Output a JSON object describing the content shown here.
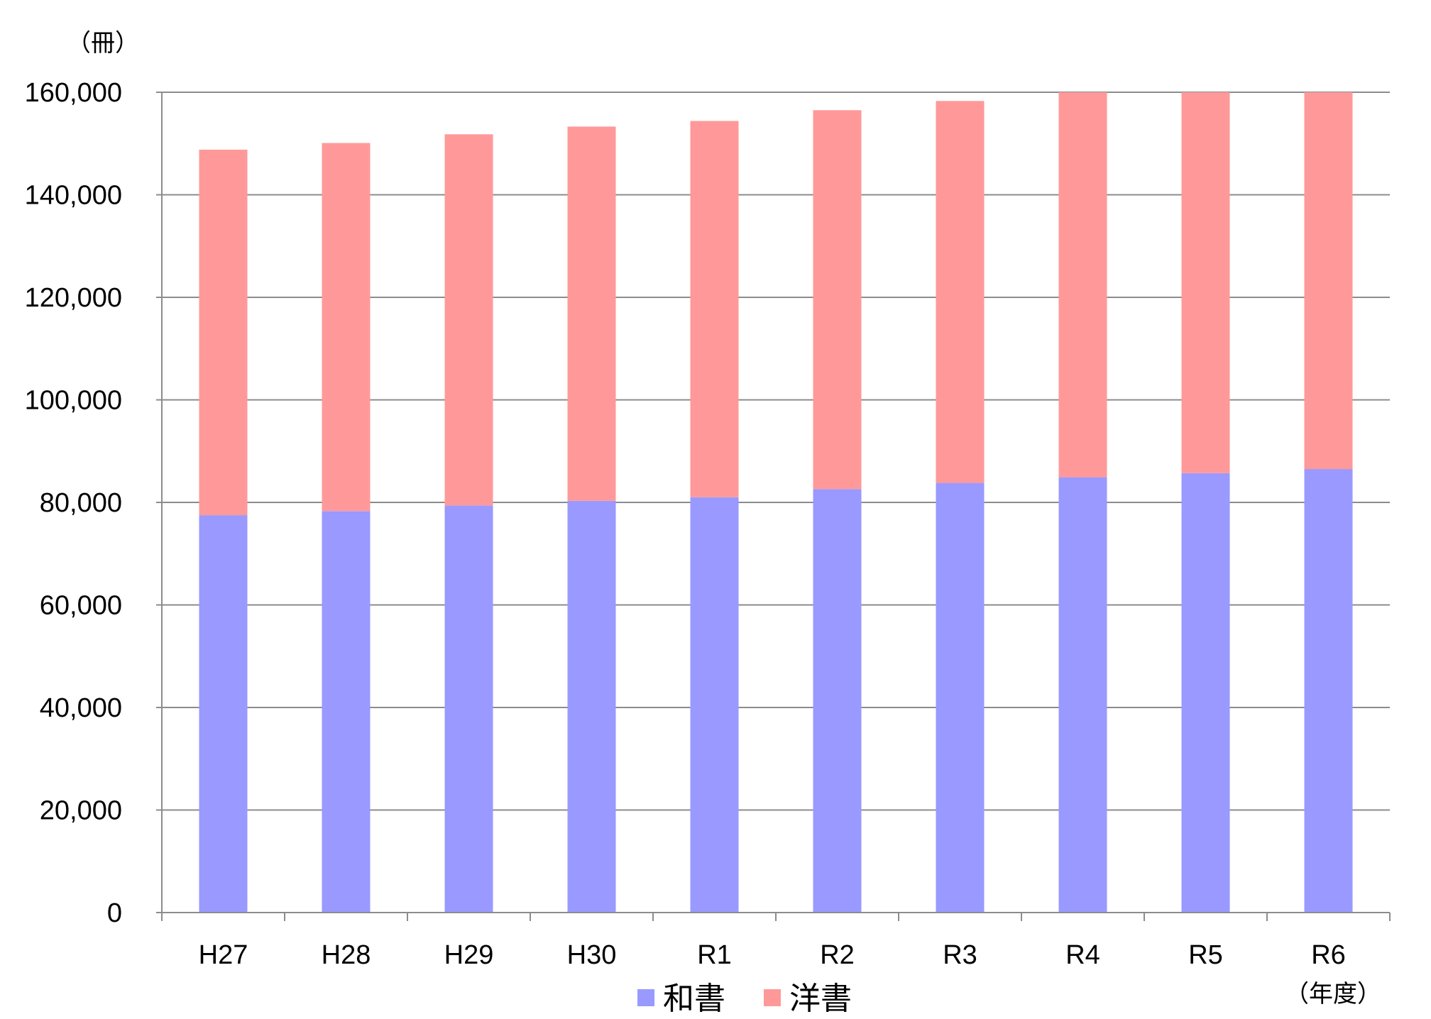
{
  "chart_data": {
    "type": "bar",
    "stacked": true,
    "y_unit_label": "（冊）",
    "x_unit_label": "（年度）",
    "categories": [
      "H27",
      "H28",
      "H29",
      "H30",
      "R1",
      "R2",
      "R3",
      "R4",
      "R5",
      "R6"
    ],
    "series": [
      {
        "name": "和書",
        "color": "#9999ff",
        "values": [
          77500,
          78300,
          79400,
          80300,
          81000,
          82600,
          83800,
          84900,
          85700,
          86500
        ]
      },
      {
        "name": "洋書",
        "color": "#ff9999",
        "values": [
          71300,
          71800,
          72400,
          73000,
          73400,
          73900,
          74500,
          75200,
          74400,
          73700
        ]
      }
    ],
    "ylim": [
      0,
      160000
    ],
    "yticks": [
      0,
      20000,
      40000,
      60000,
      80000,
      100000,
      120000,
      140000,
      160000
    ],
    "ytick_labels": [
      "0",
      "20,000",
      "40,000",
      "60,000",
      "80,000",
      "100,000",
      "120,000",
      "140,000",
      "160,000"
    ],
    "grid": true,
    "legend_position": "bottom"
  }
}
